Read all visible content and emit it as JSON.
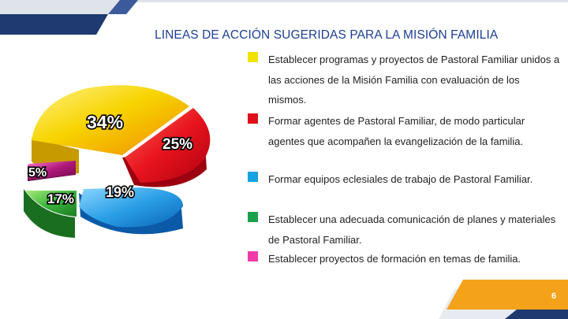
{
  "slide": {
    "title": "LINEAS DE ACCIÓN SUGERIDAS PARA LA MISIÓN FAMILIA",
    "page_number": "6"
  },
  "legend": [
    {
      "text": "Establecer programas y proyectos de Pastoral Familiar unidos a las acciones de la Misión Familia con evaluación de los mismos.",
      "color": "#f2e200"
    },
    {
      "text": " Formar agentes de Pastoral Familiar, de modo particular agentes que acompañen la evangelización de la familia.",
      "color": "#e0101a"
    },
    {
      "text": "Formar equipos eclesiales de trabajo de Pastoral Familiar.",
      "color": "#17a2e0"
    },
    {
      "text": " Establecer una adecuada comunicación de planes y materiales de Pastoral Familiar.",
      "color": "#1aa04a"
    },
    {
      "text": "Establecer proyectos de formación en temas de familia.",
      "color": "#f03ca8"
    }
  ],
  "chart_data": {
    "type": "pie",
    "style": "3d exploded",
    "slices": [
      {
        "label": "34%",
        "value": 34,
        "color": "#f5c400"
      },
      {
        "label": "25%",
        "value": 25,
        "color": "#e8141e"
      },
      {
        "label": "19%",
        "value": 19,
        "color": "#2a9fe6"
      },
      {
        "label": "17%",
        "value": 17,
        "color": "#3cb43c"
      },
      {
        "label": "5%",
        "value": 5,
        "color": "#b0187a"
      }
    ]
  }
}
